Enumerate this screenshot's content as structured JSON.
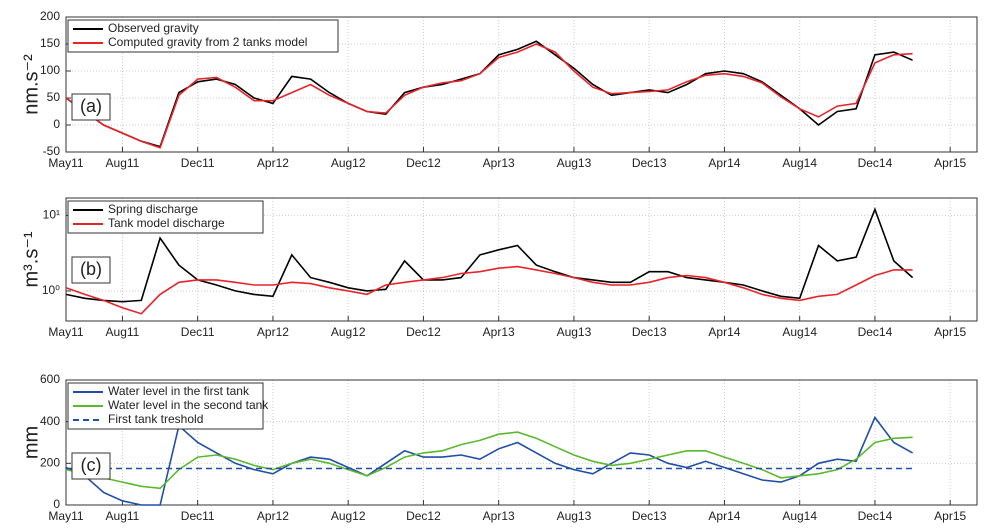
{
  "chart_data": [
    {
      "type": "line",
      "panel_label": "(a)",
      "ylabel": "nm.s⁻²",
      "ylim": [
        -50,
        200
      ],
      "yticks": [
        -50,
        0,
        50,
        100,
        150,
        200
      ],
      "xlim": [
        "2011-05",
        "2015-05"
      ],
      "xticks": [
        {
          "value": "2011-05",
          "label": "May11"
        },
        {
          "value": "2011-08",
          "label": "Aug11"
        },
        {
          "value": "2011-12",
          "label": "Dec11"
        },
        {
          "value": "2012-04",
          "label": "Apr12"
        },
        {
          "value": "2012-08",
          "label": "Aug12"
        },
        {
          "value": "2012-12",
          "label": "Dec12"
        },
        {
          "value": "2013-04",
          "label": "Apr13"
        },
        {
          "value": "2013-08",
          "label": "Aug13"
        },
        {
          "value": "2013-12",
          "label": "Dec13"
        },
        {
          "value": "2014-04",
          "label": "Apr14"
        },
        {
          "value": "2014-08",
          "label": "Aug14"
        },
        {
          "value": "2014-12",
          "label": "Dec14"
        },
        {
          "value": "2015-04",
          "label": "Apr15"
        }
      ],
      "grid": true,
      "legend": "upper left",
      "x": [
        "2011-05",
        "2011-06",
        "2011-07",
        "2011-08",
        "2011-09",
        "2011-10",
        "2011-11",
        "2011-12",
        "2012-01",
        "2012-02",
        "2012-03",
        "2012-04",
        "2012-05",
        "2012-06",
        "2012-07",
        "2012-08",
        "2012-09",
        "2012-10",
        "2012-11",
        "2012-12",
        "2013-01",
        "2013-02",
        "2013-03",
        "2013-04",
        "2013-05",
        "2013-06",
        "2013-07",
        "2013-08",
        "2013-09",
        "2013-10",
        "2013-11",
        "2013-12",
        "2014-01",
        "2014-02",
        "2014-03",
        "2014-04",
        "2014-05",
        "2014-06",
        "2014-07",
        "2014-08",
        "2014-09",
        "2014-10",
        "2014-11",
        "2014-12",
        "2015-01",
        "2015-02"
      ],
      "series": [
        {
          "name": "Observed gravity",
          "color": "#000000",
          "values": [
            50,
            25,
            0,
            -15,
            -30,
            -40,
            60,
            80,
            85,
            75,
            50,
            40,
            90,
            85,
            60,
            40,
            25,
            20,
            60,
            70,
            75,
            85,
            95,
            130,
            140,
            155,
            130,
            105,
            75,
            55,
            60,
            65,
            60,
            75,
            95,
            100,
            95,
            80,
            55,
            30,
            0,
            25,
            30,
            130,
            135,
            120
          ]
        },
        {
          "name": "Computed gravity from 2 tanks model",
          "color": "#e8242b",
          "values": [
            50,
            25,
            0,
            -15,
            -30,
            -42,
            55,
            85,
            88,
            70,
            45,
            45,
            60,
            75,
            55,
            40,
            25,
            22,
            55,
            70,
            78,
            82,
            95,
            125,
            135,
            150,
            135,
            100,
            70,
            58,
            60,
            62,
            65,
            80,
            92,
            95,
            90,
            78,
            52,
            30,
            15,
            35,
            40,
            115,
            130,
            132
          ]
        }
      ]
    },
    {
      "type": "line",
      "panel_label": "(b)",
      "ylabel": "m³.s⁻¹",
      "log": true,
      "ylim": [
        0.4,
        17
      ],
      "yticks": [
        {
          "value": 1,
          "label": "10⁰"
        },
        {
          "value": 10,
          "label": "10¹"
        }
      ],
      "xlim": [
        "2011-05",
        "2015-05"
      ],
      "xticks": [
        {
          "value": "2011-05",
          "label": "May11"
        },
        {
          "value": "2011-08",
          "label": "Aug11"
        },
        {
          "value": "2011-12",
          "label": "Dec11"
        },
        {
          "value": "2012-04",
          "label": "Apr12"
        },
        {
          "value": "2012-08",
          "label": "Aug12"
        },
        {
          "value": "2012-12",
          "label": "Dec12"
        },
        {
          "value": "2013-04",
          "label": "Apr13"
        },
        {
          "value": "2013-08",
          "label": "Aug13"
        },
        {
          "value": "2013-12",
          "label": "Dec13"
        },
        {
          "value": "2014-04",
          "label": "Apr14"
        },
        {
          "value": "2014-08",
          "label": "Aug14"
        },
        {
          "value": "2014-12",
          "label": "Dec14"
        },
        {
          "value": "2015-04",
          "label": "Apr15"
        }
      ],
      "grid": true,
      "legend": "upper left",
      "x": [
        "2011-05",
        "2011-06",
        "2011-07",
        "2011-08",
        "2011-09",
        "2011-10",
        "2011-11",
        "2011-12",
        "2012-01",
        "2012-02",
        "2012-03",
        "2012-04",
        "2012-05",
        "2012-06",
        "2012-07",
        "2012-08",
        "2012-09",
        "2012-10",
        "2012-11",
        "2012-12",
        "2013-01",
        "2013-02",
        "2013-03",
        "2013-04",
        "2013-05",
        "2013-06",
        "2013-07",
        "2013-08",
        "2013-09",
        "2013-10",
        "2013-11",
        "2013-12",
        "2014-01",
        "2014-02",
        "2014-03",
        "2014-04",
        "2014-05",
        "2014-06",
        "2014-07",
        "2014-08",
        "2014-09",
        "2014-10",
        "2014-11",
        "2014-12",
        "2015-01",
        "2015-02"
      ],
      "series": [
        {
          "name": "Spring discharge",
          "color": "#000000",
          "values": [
            0.9,
            0.8,
            0.75,
            0.72,
            0.75,
            5,
            2.2,
            1.4,
            1.2,
            1.0,
            0.9,
            0.85,
            3,
            1.5,
            1.3,
            1.1,
            1.0,
            1.05,
            2.5,
            1.4,
            1.4,
            1.5,
            3,
            3.5,
            4,
            2.2,
            1.8,
            1.5,
            1.4,
            1.3,
            1.3,
            1.8,
            1.8,
            1.5,
            1.4,
            1.3,
            1.2,
            1.0,
            0.85,
            0.8,
            4,
            2.5,
            2.8,
            12,
            2.5,
            1.5
          ]
        },
        {
          "name": "Tank model discharge",
          "color": "#e8242b",
          "values": [
            1.1,
            0.9,
            0.75,
            0.6,
            0.5,
            0.9,
            1.3,
            1.4,
            1.4,
            1.3,
            1.2,
            1.2,
            1.3,
            1.25,
            1.1,
            1.0,
            0.9,
            1.2,
            1.3,
            1.4,
            1.5,
            1.7,
            1.8,
            2.0,
            2.1,
            1.9,
            1.7,
            1.5,
            1.3,
            1.2,
            1.2,
            1.3,
            1.5,
            1.6,
            1.5,
            1.3,
            1.1,
            0.9,
            0.8,
            0.75,
            0.85,
            0.9,
            1.2,
            1.6,
            1.9,
            1.9
          ]
        }
      ]
    },
    {
      "type": "line",
      "panel_label": "(c)",
      "ylabel": "mm",
      "ylim": [
        0,
        600
      ],
      "yticks": [
        0,
        200,
        400,
        600
      ],
      "xlim": [
        "2011-05",
        "2015-05"
      ],
      "xticks": [
        {
          "value": "2011-05",
          "label": "May11"
        },
        {
          "value": "2011-08",
          "label": "Aug11"
        },
        {
          "value": "2011-12",
          "label": "Dec11"
        },
        {
          "value": "2012-04",
          "label": "Apr12"
        },
        {
          "value": "2012-08",
          "label": "Aug12"
        },
        {
          "value": "2012-12",
          "label": "Dec12"
        },
        {
          "value": "2013-04",
          "label": "Apr13"
        },
        {
          "value": "2013-08",
          "label": "Aug13"
        },
        {
          "value": "2013-12",
          "label": "Dec13"
        },
        {
          "value": "2014-04",
          "label": "Apr14"
        },
        {
          "value": "2014-08",
          "label": "Aug14"
        },
        {
          "value": "2014-12",
          "label": "Dec14"
        },
        {
          "value": "2015-04",
          "label": "Apr15"
        }
      ],
      "grid": true,
      "legend": "upper left",
      "x": [
        "2011-05",
        "2011-06",
        "2011-07",
        "2011-08",
        "2011-09",
        "2011-10",
        "2011-11",
        "2011-12",
        "2012-01",
        "2012-02",
        "2012-03",
        "2012-04",
        "2012-05",
        "2012-06",
        "2012-07",
        "2012-08",
        "2012-09",
        "2012-10",
        "2012-11",
        "2012-12",
        "2013-01",
        "2013-02",
        "2013-03",
        "2013-04",
        "2013-05",
        "2013-06",
        "2013-07",
        "2013-08",
        "2013-09",
        "2013-10",
        "2013-11",
        "2013-12",
        "2014-01",
        "2014-02",
        "2014-03",
        "2014-04",
        "2014-05",
        "2014-06",
        "2014-07",
        "2014-08",
        "2014-09",
        "2014-10",
        "2014-11",
        "2014-12",
        "2015-01",
        "2015-02"
      ],
      "series": [
        {
          "name": "Water level in the first tank",
          "color": "#1f4ea8",
          "values": [
            180,
            140,
            60,
            20,
            0,
            0,
            380,
            300,
            250,
            200,
            170,
            150,
            200,
            230,
            220,
            180,
            140,
            200,
            260,
            230,
            230,
            240,
            220,
            270,
            300,
            250,
            200,
            170,
            150,
            200,
            250,
            240,
            200,
            180,
            210,
            180,
            150,
            120,
            110,
            140,
            200,
            220,
            210,
            420,
            300,
            250
          ]
        },
        {
          "name": "Water level in the second tank",
          "color": "#5cb82e",
          "values": [
            170,
            150,
            130,
            110,
            90,
            80,
            170,
            230,
            240,
            220,
            190,
            170,
            200,
            220,
            200,
            170,
            140,
            180,
            230,
            250,
            260,
            290,
            310,
            340,
            350,
            320,
            280,
            240,
            210,
            190,
            200,
            220,
            240,
            260,
            260,
            230,
            200,
            170,
            130,
            140,
            150,
            170,
            220,
            300,
            320,
            325
          ]
        },
        {
          "name": "First tank treshold",
          "color": "#1f4ea8",
          "dashed": true,
          "values": [
            175,
            175,
            175,
            175,
            175,
            175,
            175,
            175,
            175,
            175,
            175,
            175,
            175,
            175,
            175,
            175,
            175,
            175,
            175,
            175,
            175,
            175,
            175,
            175,
            175,
            175,
            175,
            175,
            175,
            175,
            175,
            175,
            175,
            175,
            175,
            175,
            175,
            175,
            175,
            175,
            175,
            175,
            175,
            175,
            175,
            175
          ]
        }
      ]
    }
  ]
}
